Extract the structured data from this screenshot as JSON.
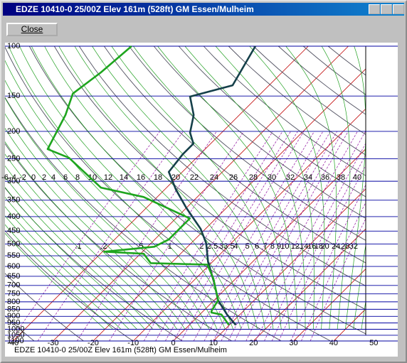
{
  "window": {
    "title": "EDZE 10410-0 25/00Z  Elev 161m (528ft) GM Essen/Mulheim",
    "button": "Close"
  },
  "chart_data": {
    "type": "skewt",
    "title": "EDZE  10410-0 25/00Z  Elev 161m (528ft) GM Essen/Mulheim",
    "ylim": [
      100,
      1100
    ],
    "yticks": [
      100,
      150,
      200,
      250,
      300,
      350,
      400,
      450,
      500,
      550,
      600,
      650,
      700,
      750,
      800,
      850,
      900,
      950,
      1000,
      1050,
      1100
    ],
    "log_y": true,
    "xlim": [
      -42,
      56
    ],
    "xticks": [
      -40,
      -30,
      -20,
      -10,
      0,
      10,
      20,
      30,
      40,
      50
    ],
    "moist_adiabat_labels": [
      -6,
      -4,
      -2,
      0,
      2,
      4,
      6,
      8,
      10,
      12,
      14,
      16,
      18,
      20,
      22,
      24,
      26,
      28,
      30,
      32,
      34,
      36,
      38,
      40
    ],
    "mixing_ratio_labels": [
      {
        "value": 0.1,
        "label": ".1"
      },
      {
        "value": 0.2,
        "label": ".2"
      },
      {
        "value": 0.5,
        "label": ".5"
      },
      1,
      2,
      2.5,
      3,
      3.5,
      4,
      5,
      6,
      7,
      8,
      9,
      10,
      12,
      14,
      16,
      18,
      20,
      24,
      28,
      32
    ],
    "series": [
      {
        "color": "#15404a",
        "pressure": [
          100,
          137.5,
          150.7,
          175,
          202,
          221,
          241,
          278,
          321,
          372,
          442,
          497,
          578,
          686,
          790,
          887,
          966
        ],
        "values": [
          -53.2,
          -49.1,
          -56.9,
          -51.4,
          -47.9,
          -44.3,
          -44.3,
          -43.4,
          -37.2,
          -30.1,
          -21.2,
          -16.2,
          -11.1,
          -4.3,
          1.0,
          6.8,
          11.6
        ]
      },
      {
        "color": "#1ea51e",
        "pressure": [
          100,
          123.9,
          147,
          175,
          231,
          248,
          316,
          341,
          406,
          482,
          511,
          532,
          541,
          584,
          591,
          662,
          790,
          860,
          873,
          887,
          966
        ],
        "values": [
          -84.1,
          -85.2,
          -86.9,
          -83.4,
          -79.3,
          -71.8,
          -56.4,
          -43.4,
          -26.5,
          -26.5,
          -28.3,
          -39.5,
          -29.2,
          -25.1,
          -10.6,
          -5.6,
          1.0,
          2.0,
          2.4,
          5.4,
          9.9
        ]
      }
    ]
  }
}
